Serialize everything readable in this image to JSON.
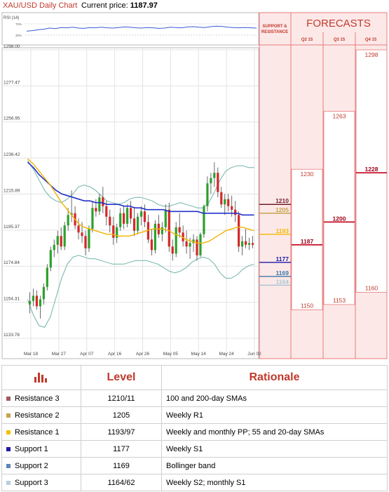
{
  "header": {
    "title": "XAU/USD Daily Chart",
    "price_label": "Current price:",
    "price_value": "1187.97"
  },
  "forecast_panel": {
    "title": "FORECASTS",
    "sr_label_line1": "SUPPORT &",
    "sr_label_line2": "RESISTANCE",
    "columns": [
      "Q2 15",
      "Q3 15",
      "Q4 15"
    ],
    "quarters": [
      {
        "label": "Q2 15",
        "high": 1230,
        "mid": 1187,
        "low": 1150
      },
      {
        "label": "Q3 15",
        "high": 1263,
        "mid": 1200,
        "low": 1153
      },
      {
        "label": "Q4 15",
        "high": 1298,
        "mid": 1228,
        "low": 1160
      }
    ]
  },
  "sr_levels": [
    {
      "value": 1210,
      "label": "1210",
      "color": "#6d1f2a"
    },
    {
      "value": 1205,
      "label": "1205",
      "color": "#c7a24a"
    },
    {
      "value": 1193,
      "label": "1193",
      "color": "#f3b900"
    },
    {
      "value": 1177,
      "label": "1177",
      "color": "#1a1aa8"
    },
    {
      "value": 1169,
      "label": "1169",
      "color": "#3c78a8"
    },
    {
      "value": 1164,
      "label": "1164",
      "color": "#a9c8d6"
    }
  ],
  "chart_data": {
    "type": "candlestick",
    "y_ticks": [
      1298.0,
      1277.47,
      1256.95,
      1236.42,
      1215.89,
      1195.37,
      1174.84,
      1154.31,
      1133.78
    ],
    "y_tick_labels": [
      "1298.00",
      "1277.47",
      "1256.95",
      "1236.42",
      "1215.89",
      "1195.37",
      "1174.84",
      "1154.31",
      "1133.78"
    ],
    "ylim": [
      1133.78,
      1298.0
    ],
    "x_tick_labels": [
      "Mar 18",
      "Mar 27",
      "Apr 07",
      "Apr 16",
      "Apr 26",
      "May 05",
      "May 14",
      "May 24",
      "Jun 02"
    ],
    "grid": true,
    "candles_ohlc": [
      [
        1153,
        1160,
        1148,
        1155
      ],
      [
        1155,
        1162,
        1152,
        1158
      ],
      [
        1158,
        1161,
        1150,
        1152
      ],
      [
        1152,
        1158,
        1145,
        1156
      ],
      [
        1156,
        1165,
        1153,
        1163
      ],
      [
        1163,
        1176,
        1161,
        1174
      ],
      [
        1174,
        1186,
        1172,
        1184
      ],
      [
        1184,
        1190,
        1180,
        1187
      ],
      [
        1187,
        1195,
        1182,
        1192
      ],
      [
        1192,
        1197,
        1184,
        1186
      ],
      [
        1186,
        1200,
        1184,
        1198
      ],
      [
        1198,
        1208,
        1195,
        1204
      ],
      [
        1204,
        1218,
        1200,
        1205
      ],
      [
        1205,
        1209,
        1196,
        1198
      ],
      [
        1198,
        1202,
        1190,
        1194
      ],
      [
        1194,
        1200,
        1188,
        1192
      ],
      [
        1192,
        1195,
        1181,
        1185
      ],
      [
        1185,
        1198,
        1183,
        1196
      ],
      [
        1196,
        1212,
        1194,
        1208
      ],
      [
        1208,
        1213,
        1203,
        1206
      ],
      [
        1206,
        1216,
        1204,
        1214
      ],
      [
        1214,
        1220,
        1205,
        1209
      ],
      [
        1209,
        1212,
        1198,
        1203
      ],
      [
        1203,
        1207,
        1194,
        1198
      ],
      [
        1198,
        1203,
        1187,
        1191
      ],
      [
        1191,
        1199,
        1188,
        1197
      ],
      [
        1197,
        1208,
        1195,
        1205
      ],
      [
        1205,
        1209,
        1196,
        1199
      ],
      [
        1199,
        1210,
        1197,
        1208
      ],
      [
        1208,
        1212,
        1199,
        1202
      ],
      [
        1202,
        1208,
        1192,
        1195
      ],
      [
        1195,
        1205,
        1193,
        1203
      ],
      [
        1203,
        1209,
        1198,
        1206
      ],
      [
        1206,
        1210,
        1197,
        1200
      ],
      [
        1200,
        1204,
        1188,
        1190
      ],
      [
        1190,
        1196,
        1181,
        1184
      ],
      [
        1184,
        1201,
        1182,
        1199
      ],
      [
        1199,
        1204,
        1191,
        1193
      ],
      [
        1193,
        1200,
        1189,
        1197
      ],
      [
        1197,
        1210,
        1194,
        1207
      ],
      [
        1207,
        1211,
        1183,
        1186
      ],
      [
        1186,
        1190,
        1178,
        1182
      ],
      [
        1182,
        1200,
        1180,
        1197
      ],
      [
        1197,
        1205,
        1191,
        1194
      ],
      [
        1194,
        1198,
        1186,
        1189
      ],
      [
        1189,
        1195,
        1182,
        1186
      ],
      [
        1186,
        1191,
        1179,
        1188
      ],
      [
        1188,
        1193,
        1183,
        1190
      ],
      [
        1190,
        1192,
        1178,
        1181
      ],
      [
        1181,
        1194,
        1180,
        1193
      ],
      [
        1193,
        1210,
        1191,
        1209
      ],
      [
        1209,
        1226,
        1206,
        1222
      ],
      [
        1222,
        1228,
        1216,
        1225
      ],
      [
        1225,
        1234,
        1220,
        1228
      ],
      [
        1228,
        1231,
        1214,
        1217
      ],
      [
        1217,
        1220,
        1208,
        1210
      ],
      [
        1210,
        1216,
        1204,
        1213
      ],
      [
        1213,
        1216,
        1206,
        1209
      ],
      [
        1209,
        1215,
        1203,
        1207
      ],
      [
        1207,
        1212,
        1200,
        1204
      ],
      [
        1204,
        1206,
        1183,
        1186
      ],
      [
        1186,
        1192,
        1181,
        1189
      ],
      [
        1189,
        1196,
        1185,
        1187
      ],
      [
        1187,
        1191,
        1184,
        1188
      ],
      [
        1188,
        1192,
        1185,
        1187
      ]
    ],
    "sma_short": [
      1236,
      1233,
      1229,
      1225,
      1221,
      1216,
      1211,
      1207,
      1203,
      1199,
      1197,
      1196,
      1195,
      1194,
      1193,
      1193,
      1192,
      1192,
      1192,
      1193,
      1194,
      1195,
      1196,
      1196,
      1196,
      1195,
      1193,
      1192,
      1190,
      1189,
      1188,
      1188,
      1189,
      1191,
      1193,
      1195,
      1196,
      1197,
      1197,
      1196,
      1195
    ],
    "sma_long": [
      1234,
      1231,
      1227,
      1224,
      1221,
      1218,
      1216,
      1215,
      1214,
      1213,
      1212,
      1212,
      1211,
      1211,
      1210,
      1210,
      1210,
      1209,
      1209,
      1208,
      1208,
      1207,
      1207,
      1207,
      1207,
      1206,
      1206,
      1206,
      1206,
      1206,
      1206,
      1205,
      1205,
      1205,
      1205,
      1205,
      1205,
      1205,
      1204,
      1204,
      1204
    ],
    "bb_upper": [
      1235,
      1230,
      1224,
      1218,
      1214,
      1212,
      1211,
      1213,
      1216,
      1220,
      1221,
      1220,
      1218,
      1215,
      1212,
      1211,
      1210,
      1211,
      1213,
      1214,
      1214,
      1213,
      1212,
      1210,
      1209,
      1209,
      1210,
      1211,
      1210,
      1209,
      1208,
      1208,
      1211,
      1217,
      1224,
      1229,
      1231,
      1232,
      1232,
      1231,
      1231
    ],
    "bb_lower": [
      1156,
      1147,
      1141,
      1140,
      1146,
      1157,
      1168,
      1176,
      1180,
      1181,
      1180,
      1179,
      1179,
      1178,
      1177,
      1176,
      1176,
      1176,
      1177,
      1178,
      1178,
      1178,
      1177,
      1176,
      1174,
      1172,
      1171,
      1172,
      1174,
      1177,
      1179,
      1180,
      1179,
      1176,
      1171,
      1168,
      1168,
      1170,
      1173,
      1175,
      1176
    ],
    "rsi": {
      "label": "RSI (14)",
      "levels": [
        "70%",
        "30%"
      ],
      "values": [
        44,
        46,
        49,
        51,
        55,
        53,
        57,
        56,
        58,
        55,
        54,
        57,
        56,
        58,
        56,
        55,
        57,
        59,
        58,
        56,
        55,
        57,
        56,
        54,
        55,
        58,
        57,
        56,
        59,
        60,
        58,
        57,
        60,
        62,
        61,
        58,
        57,
        56,
        57,
        56,
        55
      ]
    }
  },
  "table": {
    "headers": {
      "level": "Level",
      "rationale": "Rationale"
    },
    "rows": [
      {
        "name": "Resistance 3",
        "level": "1210/11",
        "rationale": "100 and 200-day SMAs",
        "color": "#a05a5a"
      },
      {
        "name": "Resistance 2",
        "level": "1205",
        "rationale": "Weekly R1",
        "color": "#c7a24a"
      },
      {
        "name": "Resistance 1",
        "level": "1193/97",
        "rationale": "Weekly and monthly PP; 55 and 20-day SMAs",
        "color": "#f3c100"
      },
      {
        "name": "Support 1",
        "level": "1177",
        "rationale": "Weekly S1",
        "color": "#1a1aa8"
      },
      {
        "name": "Support 2",
        "level": "1169",
        "rationale": "Bollinger band",
        "color": "#5b86b8"
      },
      {
        "name": "Support 3",
        "level": "1164/62",
        "rationale": "Weekly S2; monthly S1",
        "color": "#b7cde0"
      }
    ]
  }
}
